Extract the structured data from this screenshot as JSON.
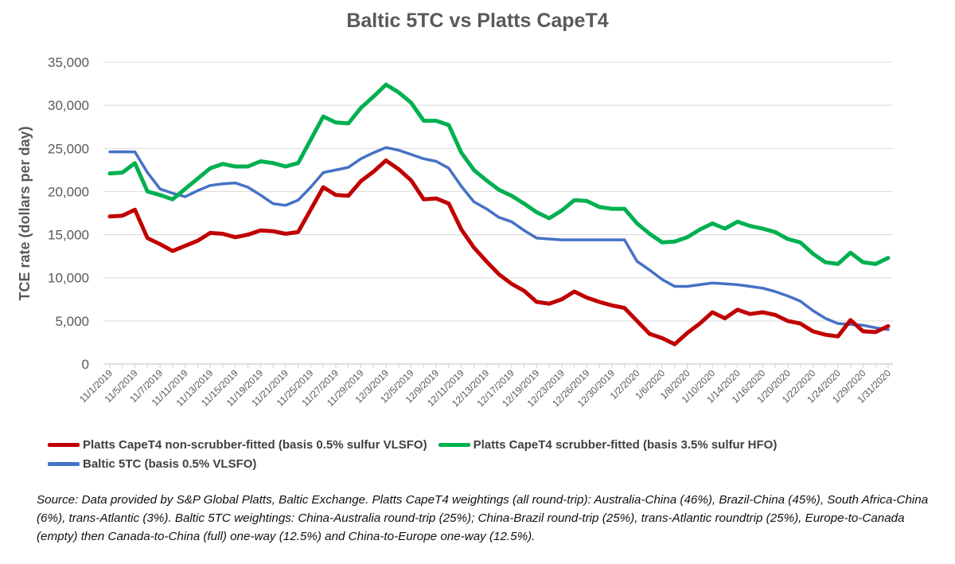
{
  "chart_data": {
    "type": "line",
    "title": "Baltic 5TC vs Platts CapeT4",
    "xlabel": "",
    "ylabel": "TCE rate (dollars per day)",
    "ylim": [
      0,
      35000
    ],
    "yticks": [
      0,
      5000,
      10000,
      15000,
      20000,
      25000,
      30000,
      35000
    ],
    "ytick_labels": [
      "0",
      "5,000",
      "10,000",
      "15,000",
      "20,000",
      "25,000",
      "30,000",
      "35,000"
    ],
    "grid": true,
    "legend_position": "bottom",
    "xtick_labels": [
      "11/1/2019",
      "11/5/2019",
      "11/7/2019",
      "11/11/2019",
      "11/13/2019",
      "11/15/2019",
      "11/19/2019",
      "11/21/2019",
      "11/25/2019",
      "11/27/2019",
      "11/29/2019",
      "12/3/2019",
      "12/5/2019",
      "12/9/2019",
      "12/11/2019",
      "12/13/2019",
      "12/17/2019",
      "12/19/2019",
      "12/23/2019",
      "12/26/2019",
      "12/30/2019",
      "1/2/2020",
      "1/6/2020",
      "1/8/2020",
      "1/10/2020",
      "1/14/2020",
      "1/16/2020",
      "1/20/2020",
      "1/22/2020",
      "1/24/2020",
      "1/29/2020",
      "1/31/2020"
    ],
    "series": [
      {
        "name": "Platts CapeT4 non-scrubber-fitted (basis 0.5% sulfur VLSFO)",
        "color": "#C00000",
        "values": [
          17100,
          17200,
          17900,
          14600,
          13900,
          13100,
          13700,
          14300,
          15200,
          15100,
          14700,
          15000,
          15500,
          15400,
          15100,
          15300,
          17900,
          20500,
          19600,
          19500,
          21200,
          22300,
          23600,
          22600,
          21300,
          19100,
          19200,
          18600,
          15600,
          13500,
          11900,
          10400,
          9300,
          8500,
          7200,
          7000,
          7500,
          8400,
          7700,
          7200,
          6800,
          6500,
          5000,
          3500,
          3000,
          2300,
          3600,
          4700,
          6000,
          5300,
          6300,
          5800,
          6000,
          5700,
          5000,
          4700,
          3800,
          3400,
          3200,
          5100,
          3800,
          3700,
          4400
        ]
      },
      {
        "name": "Platts CapeT4 scrubber-fitted (basis 3.5% sulfur HFO)",
        "color": "#00B050",
        "values": [
          22100,
          22200,
          23300,
          20000,
          19600,
          19100,
          20300,
          21500,
          22700,
          23200,
          22900,
          22900,
          23500,
          23300,
          22900,
          23300,
          26000,
          28700,
          28000,
          27900,
          29700,
          31000,
          32400,
          31500,
          30300,
          28200,
          28200,
          27700,
          24500,
          22500,
          21300,
          20200,
          19500,
          18600,
          17600,
          16900,
          17800,
          19000,
          18900,
          18200,
          18000,
          18000,
          16300,
          15100,
          14100,
          14200,
          14700,
          15600,
          16300,
          15700,
          16500,
          16000,
          15700,
          15300,
          14500,
          14100,
          12800,
          11800,
          11600,
          12900,
          11800,
          11600,
          12300
        ]
      },
      {
        "name": "Baltic 5TC (basis 0.5% VLSFO)",
        "color": "#4472C4",
        "values": [
          24600,
          24600,
          24600,
          22200,
          20300,
          19800,
          19400,
          20100,
          20700,
          20900,
          21000,
          20500,
          19600,
          18600,
          18400,
          19000,
          20500,
          22200,
          22500,
          22800,
          23800,
          24500,
          25100,
          24800,
          24300,
          23800,
          23500,
          22700,
          20600,
          18800,
          18000,
          17000,
          16500,
          15500,
          14600,
          14500,
          14400,
          14400,
          14400,
          14400,
          14400,
          14400,
          11900,
          10900,
          9800,
          9000,
          9000,
          9200,
          9400,
          9300,
          9200,
          9000,
          8800,
          8400,
          7900,
          7300,
          6200,
          5300,
          4700,
          4600,
          4500,
          4200,
          4000
        ]
      }
    ]
  },
  "legend": {
    "items": [
      {
        "label": "Platts CapeT4 non-scrubber-fitted (basis 0.5% sulfur VLSFO)",
        "color": "#C00000"
      },
      {
        "label": "Platts CapeT4 scrubber-fitted (basis 3.5% sulfur HFO)",
        "color": "#00B050"
      },
      {
        "label": "Baltic 5TC (basis 0.5% VLSFO)",
        "color": "#4472C4"
      }
    ]
  },
  "source_note": "Source: Data provided by S&P Global Platts, Baltic Exchange. Platts CapeT4 weightings (all round-trip): Australia-China (46%), Brazil-China (45%), South Africa-China (6%), trans-Atlantic (3%). Baltic 5TC weightings: China-Australia round-trip (25%); China-Brazil round-trip (25%), trans-Atlantic roundtrip (25%), Europe-to-Canada (empty) then Canada-to-China (full) one-way (12.5%) and China-to-Europe one-way (12.5%)."
}
